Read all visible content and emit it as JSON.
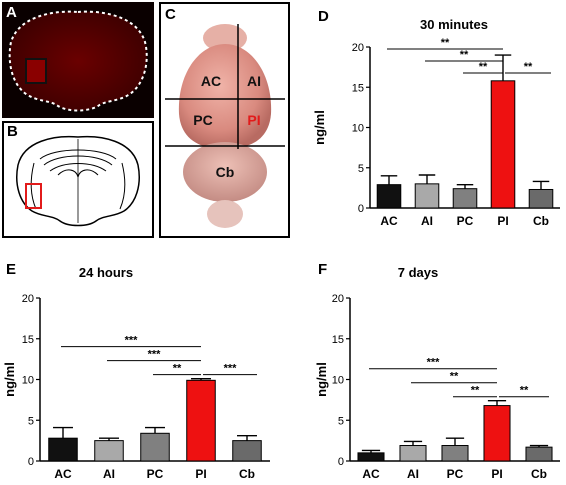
{
  "panels": {
    "a": {
      "label": "A"
    },
    "b": {
      "label": "B"
    },
    "c": {
      "label": "C",
      "regions": [
        "AC",
        "AI",
        "PC",
        "PI",
        "Cb"
      ]
    },
    "d": {
      "label": "D"
    },
    "e": {
      "label": "E"
    },
    "f": {
      "label": "F"
    }
  },
  "colors": {
    "AC": "#111111",
    "AI": "#a9a9a9",
    "PC": "#808080",
    "PI": "#ee1111",
    "Cb": "#6a6a6a",
    "highlight": "#e21b1b"
  },
  "chart_data": [
    {
      "type": "bar",
      "panel": "D",
      "title": "30 minutes",
      "ylabel": "ng/ml",
      "categories": [
        "AC",
        "AI",
        "PC",
        "PI",
        "Cb"
      ],
      "values": [
        2.9,
        3.0,
        2.4,
        15.8,
        2.3
      ],
      "errors": [
        1.1,
        1.1,
        0.5,
        3.2,
        1.0
      ],
      "ylim": [
        0,
        20
      ],
      "yticks": [
        "0",
        "5",
        "10",
        "15",
        "20"
      ],
      "significance": [
        {
          "from": 0,
          "to": 3,
          "label": "**"
        },
        {
          "from": 1,
          "to": 3,
          "label": "**"
        },
        {
          "from": 2,
          "to": 3,
          "label": "**"
        },
        {
          "from": 3,
          "to": 4,
          "label": "**"
        }
      ]
    },
    {
      "type": "bar",
      "panel": "E",
      "title": "24 hours",
      "ylabel": "ng/ml",
      "categories": [
        "AC",
        "AI",
        "PC",
        "PI",
        "Cb"
      ],
      "values": [
        2.8,
        2.5,
        3.4,
        9.9,
        2.5
      ],
      "errors": [
        1.3,
        0.3,
        0.7,
        0.2,
        0.6
      ],
      "ylim": [
        0,
        20
      ],
      "yticks": [
        "0",
        "5",
        "10",
        "15",
        "20"
      ],
      "significance": [
        {
          "from": 0,
          "to": 3,
          "label": "***"
        },
        {
          "from": 1,
          "to": 3,
          "label": "***"
        },
        {
          "from": 2,
          "to": 3,
          "label": "**"
        },
        {
          "from": 3,
          "to": 4,
          "label": "***"
        }
      ]
    },
    {
      "type": "bar",
      "panel": "F",
      "title": "7 days",
      "ylabel": "ng/ml",
      "categories": [
        "AC",
        "AI",
        "PC",
        "PI",
        "Cb"
      ],
      "values": [
        1.0,
        1.9,
        1.9,
        6.8,
        1.7
      ],
      "errors": [
        0.3,
        0.5,
        0.9,
        0.6,
        0.2
      ],
      "ylim": [
        0,
        20
      ],
      "yticks": [
        "0",
        "5",
        "10",
        "15",
        "20"
      ],
      "significance": [
        {
          "from": 0,
          "to": 3,
          "label": "***"
        },
        {
          "from": 1,
          "to": 3,
          "label": "**"
        },
        {
          "from": 2,
          "to": 3,
          "label": "**"
        },
        {
          "from": 3,
          "to": 4,
          "label": "**"
        }
      ]
    }
  ]
}
